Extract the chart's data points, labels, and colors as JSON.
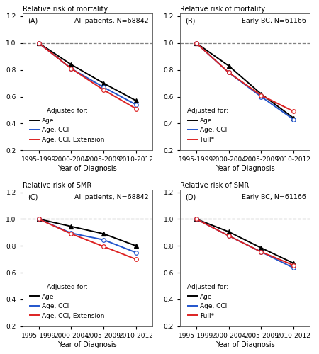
{
  "x_labels": [
    "1995-1999",
    "2000-2004",
    "2005-2009",
    "2010-2012"
  ],
  "x_positions": [
    0,
    1,
    2,
    3
  ],
  "panel_A": {
    "title": "Relative risk of mortality",
    "label": "(A)",
    "annotation": "All patients, N=68842",
    "lines": [
      {
        "label": "Age",
        "color": "#000000",
        "marker": "^",
        "values": [
          1.0,
          0.84,
          0.7,
          0.57
        ]
      },
      {
        "label": "Age, CCI",
        "color": "#2255cc",
        "marker": "o",
        "values": [
          1.0,
          0.81,
          0.67,
          0.54
        ]
      },
      {
        "label": "Age, CCI, Extension",
        "color": "#dd2222",
        "marker": "o",
        "values": [
          1.0,
          0.81,
          0.65,
          0.51
        ]
      }
    ]
  },
  "panel_B": {
    "title": "Relative risk of mortality",
    "label": "(B)",
    "annotation": "Early BC, N=61166",
    "lines": [
      {
        "label": "Age",
        "color": "#000000",
        "marker": "^",
        "values": [
          1.0,
          0.83,
          0.62,
          0.44
        ]
      },
      {
        "label": "Age, CCI",
        "color": "#2255cc",
        "marker": "o",
        "values": [
          1.0,
          0.78,
          0.6,
          0.43
        ]
      },
      {
        "label": "Full*",
        "color": "#dd2222",
        "marker": "o",
        "values": [
          1.0,
          0.78,
          0.61,
          0.49
        ]
      }
    ]
  },
  "panel_C": {
    "title": "Relative risk of SMR",
    "label": "(C)",
    "annotation": "All patients, N=68842",
    "lines": [
      {
        "label": "Age",
        "color": "#000000",
        "marker": "^",
        "values": [
          1.0,
          0.945,
          0.89,
          0.8
        ]
      },
      {
        "label": "Age, CCI",
        "color": "#2255cc",
        "marker": "o",
        "values": [
          1.0,
          0.895,
          0.845,
          0.75
        ]
      },
      {
        "label": "Age, CCI, Extension",
        "color": "#dd2222",
        "marker": "o",
        "values": [
          1.0,
          0.89,
          0.795,
          0.7
        ]
      }
    ]
  },
  "panel_D": {
    "title": "Relative risk of SMR",
    "label": "(D)",
    "annotation": "Early BC, N=61166",
    "lines": [
      {
        "label": "Age",
        "color": "#000000",
        "marker": "^",
        "values": [
          1.0,
          0.905,
          0.785,
          0.67
        ]
      },
      {
        "label": "Age, CCI",
        "color": "#2255cc",
        "marker": "o",
        "values": [
          1.0,
          0.875,
          0.755,
          0.635
        ]
      },
      {
        "label": "Full*",
        "color": "#dd2222",
        "marker": "o",
        "values": [
          1.0,
          0.875,
          0.755,
          0.655
        ]
      }
    ]
  },
  "ylim": [
    0.2,
    1.22
  ],
  "yticks": [
    0.2,
    0.4,
    0.6,
    0.8,
    1.0,
    1.2
  ],
  "xlabel": "Year of Diagnosis",
  "legend_title": "Adjusted for:",
  "markersize": 4,
  "linewidth": 1.4,
  "background_color": "#ffffff",
  "fontsize_title": 7.0,
  "fontsize_label": 7.0,
  "fontsize_annotation": 6.8,
  "fontsize_legend": 6.5,
  "fontsize_axis": 6.5
}
